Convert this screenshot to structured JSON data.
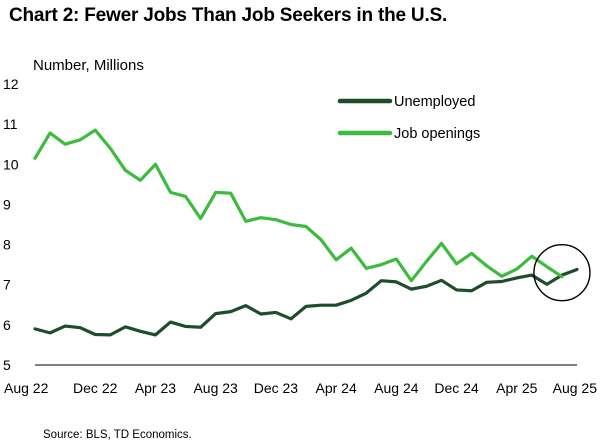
{
  "title": "Chart 2: Fewer Jobs Than Job Seekers in the U.S.",
  "source": "Source: BLS, TD Economics.",
  "colors": {
    "unemployed": "#1e4d2b",
    "job_openings": "#3dbb3d",
    "axis": "#000000",
    "highlight_circle": "#000000"
  },
  "chart_data": {
    "type": "line",
    "ylabel": "Number, Millions",
    "xlabel": "",
    "ylim": [
      5,
      12
    ],
    "yticks": [
      5,
      6,
      7,
      8,
      9,
      10,
      11,
      12
    ],
    "xlim": [
      "Aug 22",
      "Aug 25"
    ],
    "xtick_labels": [
      "Aug 22",
      "Dec 22",
      "Apr 23",
      "Aug 23",
      "Dec 23",
      "Apr 24",
      "Aug 24",
      "Dec 24",
      "Apr 25",
      "Aug 25"
    ],
    "x": [
      "Aug 22",
      "Sep 22",
      "Oct 22",
      "Nov 22",
      "Dec 22",
      "Jan 23",
      "Feb 23",
      "Mar 23",
      "Apr 23",
      "May 23",
      "Jun 23",
      "Jul 23",
      "Aug 23",
      "Sep 23",
      "Oct 23",
      "Nov 23",
      "Dec 23",
      "Jan 24",
      "Feb 24",
      "Mar 24",
      "Apr 24",
      "May 24",
      "Jun 24",
      "Jul 24",
      "Aug 24",
      "Sep 24",
      "Oct 24",
      "Nov 24",
      "Dec 24",
      "Jan 25",
      "Feb 25",
      "Mar 25",
      "Apr 25",
      "May 25",
      "Jun 25",
      "Jul 25",
      "Aug 25"
    ],
    "grid": false,
    "legend_position": "top-right",
    "series": [
      {
        "name": "Unemployed",
        "color_key": "unemployed",
        "values": [
          5.9,
          5.8,
          5.97,
          5.93,
          5.76,
          5.75,
          5.95,
          5.84,
          5.75,
          6.07,
          5.96,
          5.94,
          6.28,
          6.33,
          6.48,
          6.27,
          6.31,
          6.15,
          6.46,
          6.49,
          6.49,
          6.61,
          6.79,
          7.1,
          7.07,
          6.89,
          6.96,
          7.11,
          6.87,
          6.85,
          7.06,
          7.08,
          7.17,
          7.24,
          7.01,
          7.24,
          7.38
        ]
      },
      {
        "name": "Job openings",
        "color_key": "job_openings",
        "values": [
          10.15,
          10.78,
          10.5,
          10.61,
          10.85,
          10.4,
          9.85,
          9.6,
          10.0,
          9.3,
          9.2,
          8.65,
          9.3,
          9.28,
          8.58,
          8.67,
          8.62,
          8.5,
          8.45,
          8.12,
          7.62,
          7.91,
          7.41,
          7.5,
          7.64,
          7.1,
          7.58,
          8.03,
          7.52,
          7.78,
          7.47,
          7.21,
          7.39,
          7.71,
          7.45,
          7.2,
          null
        ]
      }
    ],
    "annotations": [
      {
        "type": "circle",
        "around": [
          "Jun 25",
          "Aug 25"
        ],
        "y_center": 7.3
      }
    ]
  }
}
